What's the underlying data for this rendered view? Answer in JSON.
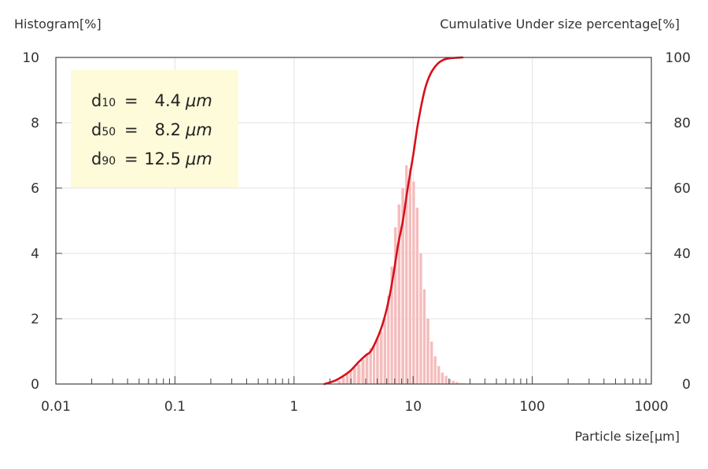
{
  "chart_data": {
    "type": "bar",
    "ylabel_left": "Histogram[%]",
    "ylabel_right": "Cumulative Under size percentage[%]",
    "xlabel": "Particle size[µm]",
    "x_scale": "log",
    "xlim": [
      0.01,
      1000
    ],
    "ylim_left": [
      0,
      10
    ],
    "ylim_right": [
      0,
      100
    ],
    "x_ticks": [
      "0.01",
      "0.1",
      "1",
      "10",
      "100",
      "1000"
    ],
    "y_ticks_left": [
      "0",
      "2",
      "4",
      "6",
      "8",
      "10"
    ],
    "y_ticks_right": [
      "0",
      "20",
      "40",
      "60",
      "80",
      "100"
    ],
    "grid": true,
    "histogram": {
      "color": "#f5bcbc",
      "x": [
        2.4,
        2.6,
        2.8,
        3.0,
        3.2,
        3.5,
        3.8,
        4.1,
        4.4,
        4.7,
        5.0,
        5.4,
        5.8,
        6.2,
        6.6,
        7.1,
        7.6,
        8.2,
        8.8,
        9.4,
        10.1,
        10.8,
        11.6,
        12.4,
        13.3,
        14.3,
        15.3,
        16.4,
        17.6,
        18.9,
        20.3,
        21.8,
        23.4,
        25.1,
        26.9
      ],
      "values": [
        0.1,
        0.2,
        0.3,
        0.4,
        0.5,
        0.6,
        0.75,
        0.9,
        1.1,
        1.2,
        1.4,
        1.6,
        2.0,
        2.7,
        3.6,
        4.8,
        5.5,
        6.0,
        6.7,
        6.6,
        6.2,
        5.4,
        4.0,
        2.9,
        2.0,
        1.3,
        0.85,
        0.55,
        0.35,
        0.25,
        0.15,
        0.1,
        0.06,
        0.03,
        0.02
      ]
    },
    "cumulative": {
      "color": "#d7101b",
      "x": [
        1.8,
        2.2,
        2.6,
        3.0,
        3.5,
        4.0,
        4.4,
        5.0,
        5.5,
        6.0,
        6.5,
        7.0,
        7.5,
        8.2,
        9.0,
        10.0,
        11.0,
        12.5,
        14.0,
        16.0,
        18.0,
        20.0,
        23.0,
        26.0
      ],
      "values": [
        0.0,
        1.0,
        2.5,
        4.2,
        6.8,
        8.8,
        10.0,
        14.0,
        18.0,
        23.0,
        29.0,
        36.0,
        43.0,
        50.0,
        60.0,
        70.0,
        80.0,
        90.0,
        95.0,
        98.0,
        99.3,
        99.7,
        99.9,
        100.0
      ]
    },
    "annotation": {
      "lines": [
        {
          "d": "d",
          "sub": "10",
          "eq": "=",
          "value": "4.4",
          "unit": "μm"
        },
        {
          "d": "d",
          "sub": "50",
          "eq": "=",
          "value": "8.2",
          "unit": "μm"
        },
        {
          "d": "d",
          "sub": "90",
          "eq": "=",
          "value": "12.5",
          "unit": "μm"
        }
      ],
      "background": "#fdfbd9"
    }
  }
}
